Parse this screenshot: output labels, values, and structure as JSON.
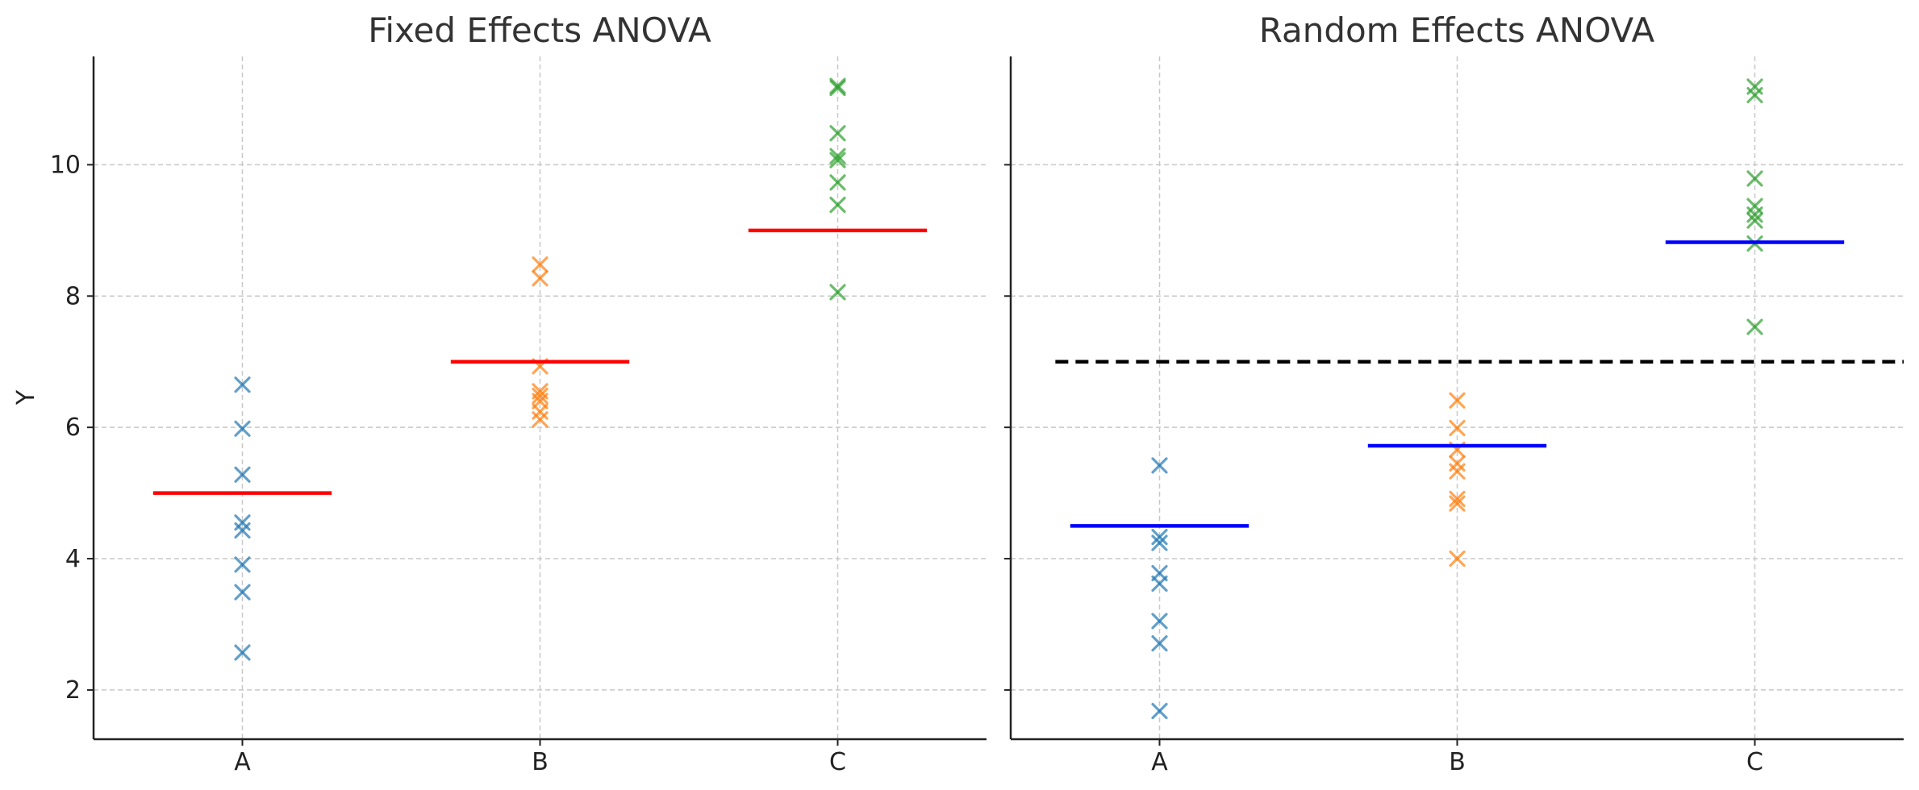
{
  "chart_data": [
    {
      "type": "scatter",
      "title": "Fixed Effects ANOVA",
      "xlabel": "",
      "ylabel": "Y",
      "categories": [
        "A",
        "B",
        "C"
      ],
      "ylim": [
        1.25,
        11.65
      ],
      "yticks": [
        2,
        4,
        6,
        8,
        10
      ],
      "grid": true,
      "series": [
        {
          "category": "A",
          "color": "#1f77b4",
          "values": [
            6.65,
            5.98,
            5.28,
            4.55,
            4.43,
            3.91,
            3.49,
            2.57
          ]
        },
        {
          "category": "B",
          "color": "#ff7f0e",
          "values": [
            8.48,
            8.27,
            6.93,
            6.55,
            6.48,
            6.4,
            6.24,
            6.12
          ]
        },
        {
          "category": "C",
          "color": "#2ca02c",
          "values": [
            11.2,
            11.17,
            10.48,
            10.13,
            10.07,
            9.73,
            9.39,
            8.06
          ]
        }
      ],
      "group_means": {
        "color": "#ff0000",
        "values": [
          5.0,
          7.0,
          9.0
        ]
      }
    },
    {
      "type": "scatter",
      "title": "Random Effects ANOVA",
      "xlabel": "",
      "ylabel": "",
      "categories": [
        "A",
        "B",
        "C"
      ],
      "ylim": [
        1.25,
        11.65
      ],
      "yticks": [
        2,
        4,
        6,
        8,
        10
      ],
      "grid": true,
      "series": [
        {
          "category": "A",
          "color": "#1f77b4",
          "values": [
            5.42,
            4.33,
            4.24,
            3.78,
            3.62,
            3.05,
            2.71,
            1.68
          ]
        },
        {
          "category": "B",
          "color": "#ff7f0e",
          "values": [
            6.41,
            5.99,
            5.66,
            5.45,
            5.33,
            4.91,
            4.84,
            4.0
          ]
        },
        {
          "category": "C",
          "color": "#2ca02c",
          "values": [
            11.19,
            11.06,
            9.79,
            9.37,
            9.24,
            9.15,
            8.8,
            7.53
          ]
        }
      ],
      "group_means": {
        "color": "#0000ff",
        "values": [
          4.5,
          5.72,
          8.82
        ]
      },
      "grand_mean": {
        "color": "#000000",
        "style": "dashed",
        "value": 7.0
      }
    }
  ]
}
